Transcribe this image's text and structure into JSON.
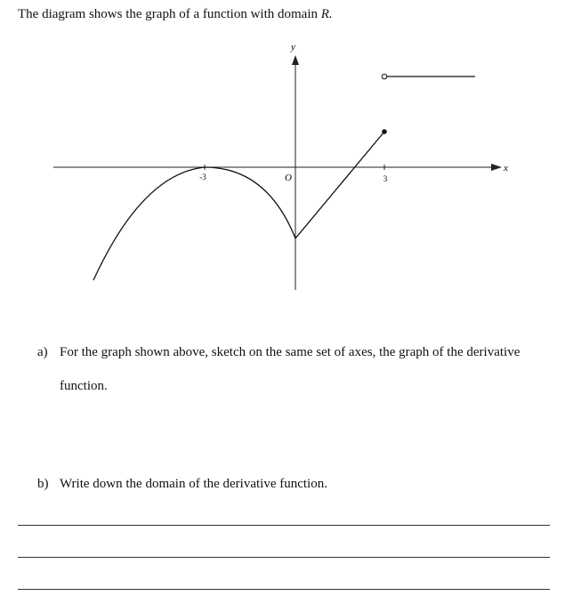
{
  "intro": {
    "text": "The diagram shows the graph of a function with domain",
    "domain": "R."
  },
  "graph": {
    "y_label": "y",
    "x_label": "x",
    "tick_left": "-3",
    "origin": "O",
    "tick_right": "3"
  },
  "questions": [
    {
      "label": "a)",
      "text": "For the graph shown above, sketch on the same set of axes, the graph of the derivative",
      "continuation": "function."
    },
    {
      "label": "b)",
      "text": "Write down the domain of the derivative function."
    }
  ]
}
